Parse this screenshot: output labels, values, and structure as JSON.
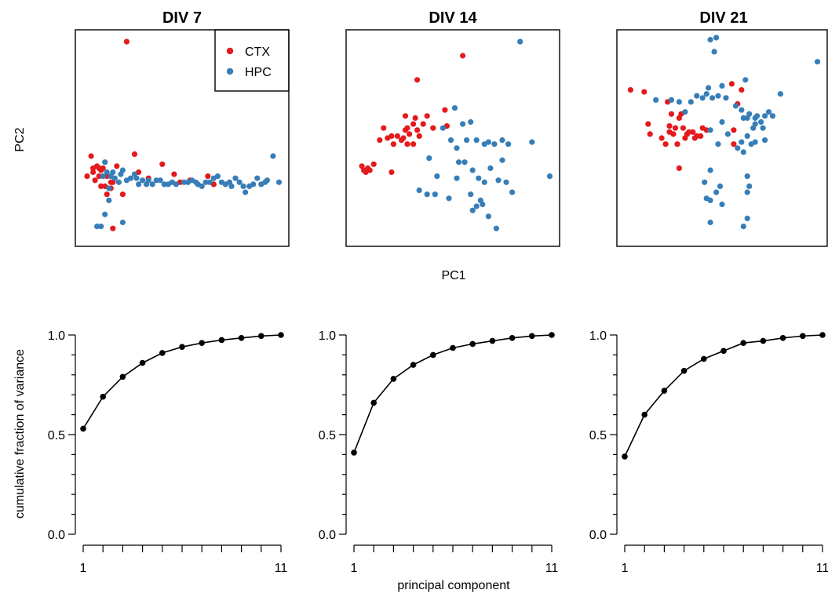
{
  "colors": {
    "CTX": "#E41A1C",
    "HPC": "#377EB8",
    "line": "#000000"
  },
  "top_row": {
    "ylabel": "PC2",
    "xlabel": "PC1",
    "legend": {
      "items": [
        "CTX",
        "HPC"
      ],
      "placement": "top-right of first panel"
    }
  },
  "bottom_row": {
    "ylabel": "cumulative fraction of variance",
    "xlabel": "principal component",
    "y_ticks": [
      "0.0",
      "0.5",
      "1.0"
    ],
    "x_ticks": [
      "1",
      "11"
    ]
  },
  "chart_data": [
    {
      "type": "scatter",
      "title": "DIV 7",
      "xlabel": "PC1",
      "ylabel": "PC2",
      "xlim": [
        0,
        1
      ],
      "ylim": [
        0,
        1
      ],
      "axes_shown": false,
      "series": [
        {
          "name": "CTX",
          "points": [
            [
              0.22,
              0.98
            ],
            [
              0.02,
              0.31
            ],
            [
              0.04,
              0.41
            ],
            [
              0.05,
              0.33
            ],
            [
              0.07,
              0.36
            ],
            [
              0.08,
              0.35
            ],
            [
              0.09,
              0.34
            ],
            [
              0.1,
              0.35
            ],
            [
              0.12,
              0.31
            ],
            [
              0.14,
              0.28
            ],
            [
              0.15,
              0.28
            ],
            [
              0.09,
              0.26
            ],
            [
              0.11,
              0.26
            ],
            [
              0.12,
              0.22
            ],
            [
              0.14,
              0.25
            ],
            [
              0.2,
              0.22
            ],
            [
              0.15,
              0.05
            ],
            [
              0.26,
              0.42
            ],
            [
              0.28,
              0.33
            ],
            [
              0.33,
              0.3
            ],
            [
              0.4,
              0.37
            ],
            [
              0.46,
              0.32
            ],
            [
              0.49,
              0.28
            ],
            [
              0.54,
              0.29
            ],
            [
              0.63,
              0.31
            ],
            [
              0.66,
              0.27
            ],
            [
              0.17,
              0.36
            ],
            [
              0.05,
              0.35
            ],
            [
              0.08,
              0.31
            ],
            [
              0.06,
              0.29
            ]
          ]
        },
        {
          "name": "HPC",
          "points": [
            [
              0.07,
              0.06
            ],
            [
              0.09,
              0.06
            ],
            [
              0.11,
              0.12
            ],
            [
              0.13,
              0.25
            ],
            [
              0.16,
              0.3
            ],
            [
              0.18,
              0.28
            ],
            [
              0.19,
              0.32
            ],
            [
              0.2,
              0.34
            ],
            [
              0.22,
              0.29
            ],
            [
              0.24,
              0.3
            ],
            [
              0.26,
              0.32
            ],
            [
              0.27,
              0.3
            ],
            [
              0.28,
              0.27
            ],
            [
              0.3,
              0.29
            ],
            [
              0.32,
              0.27
            ],
            [
              0.33,
              0.29
            ],
            [
              0.35,
              0.27
            ],
            [
              0.37,
              0.29
            ],
            [
              0.39,
              0.29
            ],
            [
              0.41,
              0.27
            ],
            [
              0.43,
              0.27
            ],
            [
              0.45,
              0.28
            ],
            [
              0.47,
              0.27
            ],
            [
              0.51,
              0.28
            ],
            [
              0.53,
              0.28
            ],
            [
              0.55,
              0.29
            ],
            [
              0.57,
              0.28
            ],
            [
              0.58,
              0.27
            ],
            [
              0.6,
              0.26
            ],
            [
              0.62,
              0.28
            ],
            [
              0.64,
              0.28
            ],
            [
              0.66,
              0.3
            ],
            [
              0.68,
              0.31
            ],
            [
              0.7,
              0.28
            ],
            [
              0.72,
              0.27
            ],
            [
              0.74,
              0.28
            ],
            [
              0.75,
              0.26
            ],
            [
              0.77,
              0.3
            ],
            [
              0.79,
              0.28
            ],
            [
              0.81,
              0.26
            ],
            [
              0.82,
              0.23
            ],
            [
              0.84,
              0.26
            ],
            [
              0.86,
              0.27
            ],
            [
              0.88,
              0.3
            ],
            [
              0.9,
              0.27
            ],
            [
              0.92,
              0.28
            ],
            [
              0.93,
              0.29
            ],
            [
              0.96,
              0.41
            ],
            [
              0.99,
              0.28
            ],
            [
              0.12,
              0.33
            ],
            [
              0.14,
              0.31
            ],
            [
              0.11,
              0.38
            ],
            [
              0.1,
              0.31
            ],
            [
              0.13,
              0.19
            ],
            [
              0.2,
              0.08
            ],
            [
              0.15,
              0.33
            ]
          ]
        }
      ]
    },
    {
      "type": "scatter",
      "title": "DIV 14",
      "xlabel": "PC1",
      "ylabel": "PC2",
      "xlim": [
        0,
        1
      ],
      "ylim": [
        0,
        1
      ],
      "axes_shown": false,
      "series": [
        {
          "name": "CTX",
          "points": [
            [
              0.55,
              0.91
            ],
            [
              0.04,
              0.36
            ],
            [
              0.05,
              0.34
            ],
            [
              0.06,
              0.33
            ],
            [
              0.07,
              0.35
            ],
            [
              0.08,
              0.34
            ],
            [
              0.1,
              0.37
            ],
            [
              0.13,
              0.49
            ],
            [
              0.15,
              0.55
            ],
            [
              0.17,
              0.5
            ],
            [
              0.19,
              0.51
            ],
            [
              0.2,
              0.47
            ],
            [
              0.22,
              0.51
            ],
            [
              0.24,
              0.49
            ],
            [
              0.25,
              0.5
            ],
            [
              0.26,
              0.54
            ],
            [
              0.27,
              0.55
            ],
            [
              0.28,
              0.52
            ],
            [
              0.3,
              0.57
            ],
            [
              0.31,
              0.6
            ],
            [
              0.32,
              0.54
            ],
            [
              0.33,
              0.51
            ],
            [
              0.35,
              0.57
            ],
            [
              0.37,
              0.61
            ],
            [
              0.4,
              0.55
            ],
            [
              0.47,
              0.56
            ],
            [
              0.26,
              0.61
            ],
            [
              0.32,
              0.79
            ],
            [
              0.46,
              0.64
            ],
            [
              0.19,
              0.33
            ],
            [
              0.27,
              0.47
            ],
            [
              0.3,
              0.47
            ]
          ]
        },
        {
          "name": "HPC",
          "points": [
            [
              0.84,
              0.98
            ],
            [
              0.51,
              0.65
            ],
            [
              0.55,
              0.57
            ],
            [
              0.59,
              0.58
            ],
            [
              0.49,
              0.49
            ],
            [
              0.52,
              0.45
            ],
            [
              0.62,
              0.49
            ],
            [
              0.66,
              0.47
            ],
            [
              0.71,
              0.47
            ],
            [
              0.75,
              0.49
            ],
            [
              0.78,
              0.47
            ],
            [
              0.9,
              0.48
            ],
            [
              0.99,
              0.31
            ],
            [
              0.53,
              0.38
            ],
            [
              0.56,
              0.38
            ],
            [
              0.6,
              0.34
            ],
            [
              0.63,
              0.3
            ],
            [
              0.66,
              0.28
            ],
            [
              0.69,
              0.35
            ],
            [
              0.73,
              0.29
            ],
            [
              0.77,
              0.28
            ],
            [
              0.8,
              0.23
            ],
            [
              0.33,
              0.24
            ],
            [
              0.37,
              0.22
            ],
            [
              0.41,
              0.22
            ],
            [
              0.48,
              0.2
            ],
            [
              0.59,
              0.22
            ],
            [
              0.62,
              0.16
            ],
            [
              0.64,
              0.19
            ],
            [
              0.65,
              0.17
            ],
            [
              0.6,
              0.14
            ],
            [
              0.68,
              0.11
            ],
            [
              0.72,
              0.05
            ],
            [
              0.52,
              0.3
            ],
            [
              0.57,
              0.49
            ],
            [
              0.45,
              0.55
            ],
            [
              0.68,
              0.48
            ],
            [
              0.75,
              0.39
            ],
            [
              0.42,
              0.31
            ],
            [
              0.38,
              0.4
            ]
          ]
        }
      ]
    },
    {
      "type": "scatter",
      "title": "DIV 21",
      "xlabel": "PC1",
      "ylabel": "PC2",
      "xlim": [
        0,
        1
      ],
      "ylim": [
        0,
        1
      ],
      "axes_shown": false,
      "series": [
        {
          "name": "CTX",
          "points": [
            [
              0.03,
              0.74
            ],
            [
              0.1,
              0.73
            ],
            [
              0.12,
              0.57
            ],
            [
              0.13,
              0.52
            ],
            [
              0.19,
              0.5
            ],
            [
              0.21,
              0.47
            ],
            [
              0.23,
              0.56
            ],
            [
              0.25,
              0.52
            ],
            [
              0.26,
              0.55
            ],
            [
              0.27,
              0.47
            ],
            [
              0.28,
              0.6
            ],
            [
              0.29,
              0.62
            ],
            [
              0.3,
              0.55
            ],
            [
              0.31,
              0.5
            ],
            [
              0.32,
              0.52
            ],
            [
              0.33,
              0.53
            ],
            [
              0.35,
              0.53
            ],
            [
              0.36,
              0.5
            ],
            [
              0.37,
              0.51
            ],
            [
              0.39,
              0.51
            ],
            [
              0.4,
              0.55
            ],
            [
              0.42,
              0.54
            ],
            [
              0.55,
              0.77
            ],
            [
              0.56,
              0.54
            ],
            [
              0.58,
              0.67
            ],
            [
              0.6,
              0.74
            ],
            [
              0.22,
              0.68
            ],
            [
              0.23,
              0.53
            ],
            [
              0.28,
              0.35
            ],
            [
              0.56,
              0.47
            ],
            [
              0.24,
              0.62
            ]
          ]
        },
        {
          "name": "HPC",
          "points": [
            [
              0.44,
              0.99
            ],
            [
              0.47,
              1.0
            ],
            [
              0.46,
              0.93
            ],
            [
              0.99,
              0.88
            ],
            [
              0.16,
              0.69
            ],
            [
              0.24,
              0.69
            ],
            [
              0.28,
              0.68
            ],
            [
              0.31,
              0.63
            ],
            [
              0.34,
              0.68
            ],
            [
              0.37,
              0.71
            ],
            [
              0.4,
              0.7
            ],
            [
              0.42,
              0.72
            ],
            [
              0.43,
              0.75
            ],
            [
              0.45,
              0.7
            ],
            [
              0.48,
              0.71
            ],
            [
              0.5,
              0.76
            ],
            [
              0.52,
              0.7
            ],
            [
              0.57,
              0.66
            ],
            [
              0.6,
              0.64
            ],
            [
              0.61,
              0.6
            ],
            [
              0.63,
              0.6
            ],
            [
              0.64,
              0.62
            ],
            [
              0.66,
              0.55
            ],
            [
              0.67,
              0.6
            ],
            [
              0.68,
              0.61
            ],
            [
              0.7,
              0.58
            ],
            [
              0.72,
              0.61
            ],
            [
              0.74,
              0.63
            ],
            [
              0.76,
              0.61
            ],
            [
              0.8,
              0.72
            ],
            [
              0.62,
              0.79
            ],
            [
              0.44,
              0.54
            ],
            [
              0.48,
              0.47
            ],
            [
              0.5,
              0.58
            ],
            [
              0.53,
              0.52
            ],
            [
              0.58,
              0.45
            ],
            [
              0.6,
              0.48
            ],
            [
              0.61,
              0.43
            ],
            [
              0.63,
              0.51
            ],
            [
              0.65,
              0.47
            ],
            [
              0.67,
              0.48
            ],
            [
              0.71,
              0.55
            ],
            [
              0.72,
              0.49
            ],
            [
              0.44,
              0.34
            ],
            [
              0.41,
              0.28
            ],
            [
              0.47,
              0.23
            ],
            [
              0.42,
              0.2
            ],
            [
              0.44,
              0.19
            ],
            [
              0.49,
              0.26
            ],
            [
              0.5,
              0.17
            ],
            [
              0.63,
              0.23
            ],
            [
              0.64,
              0.26
            ],
            [
              0.63,
              0.31
            ],
            [
              0.61,
              0.06
            ],
            [
              0.63,
              0.1
            ],
            [
              0.44,
              0.08
            ],
            [
              0.67,
              0.57
            ]
          ]
        }
      ]
    },
    {
      "type": "line",
      "title": "",
      "xlabel": "",
      "ylabel": "cumulative fraction of variance",
      "x": [
        1,
        2,
        3,
        4,
        5,
        6,
        7,
        8,
        9,
        10,
        11
      ],
      "values": [
        0.53,
        0.69,
        0.79,
        0.86,
        0.91,
        0.94,
        0.96,
        0.975,
        0.985,
        0.995,
        1.0
      ],
      "ylim": [
        0,
        1
      ],
      "xlim": [
        1,
        11
      ]
    },
    {
      "type": "line",
      "title": "",
      "xlabel": "principal component",
      "ylabel": "",
      "x": [
        1,
        2,
        3,
        4,
        5,
        6,
        7,
        8,
        9,
        10,
        11
      ],
      "values": [
        0.41,
        0.66,
        0.78,
        0.85,
        0.9,
        0.935,
        0.955,
        0.97,
        0.985,
        0.995,
        1.0
      ],
      "ylim": [
        0,
        1
      ],
      "xlim": [
        1,
        11
      ]
    },
    {
      "type": "line",
      "title": "",
      "xlabel": "",
      "ylabel": "",
      "x": [
        1,
        2,
        3,
        4,
        5,
        6,
        7,
        8,
        9,
        10,
        11
      ],
      "values": [
        0.39,
        0.6,
        0.72,
        0.82,
        0.88,
        0.92,
        0.96,
        0.97,
        0.985,
        0.995,
        1.0
      ],
      "ylim": [
        0,
        1
      ],
      "xlim": [
        1,
        11
      ]
    }
  ]
}
